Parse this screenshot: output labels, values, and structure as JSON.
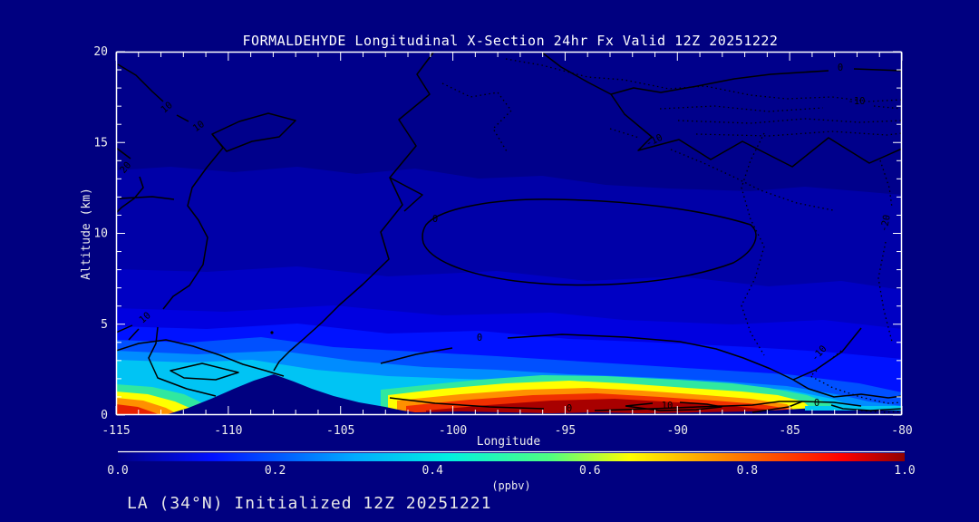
{
  "window": {
    "background": "#000080",
    "frame_color": "#ffffff"
  },
  "header": {
    "title": "FORMALDEHYDE Longitudinal X-Section 24hr  Fx Valid 12Z 20251222"
  },
  "footer": {
    "text": "LA (34°N) Initialized 12Z 20251221"
  },
  "chart_data": {
    "type": "heatmap",
    "title": "FORMALDEHYDE Longitudinal X-Section 24hr  Fx Valid 12Z 20251222",
    "xlabel": "Longitude",
    "ylabel": "Altitude (km)",
    "xlim": [
      -115,
      -80
    ],
    "ylim": [
      0,
      20
    ],
    "x_ticks": [
      -115,
      -110,
      -105,
      -100,
      -95,
      -90,
      -85,
      -80
    ],
    "x_minor_step": 1,
    "y_ticks": [
      0,
      5,
      10,
      15,
      20
    ],
    "y_minor_step": 1,
    "grid": false,
    "legend_position": "none",
    "colorbar": {
      "label": "(ppbv)",
      "tick_labels": [
        "0.0",
        "0.2",
        "0.4",
        "0.6",
        "0.8",
        "1.0"
      ],
      "range": [
        0.0,
        1.0
      ],
      "colormap": "jet",
      "stops": [
        "#000085",
        "#0010FF",
        "#00AAFF",
        "#00F0E0",
        "#50FF80",
        "#FFFF00",
        "#FF8000",
        "#FF0000",
        "#900000"
      ]
    },
    "fill_field": {
      "name": "Formaldehyde mixing ratio",
      "units": "ppbv",
      "description": "Filled contours: <0.1 ppbv (dark blue) aloft increasing toward the surface; cyan layer near 1-3 km; boundary-layer maxima >1 ppbv (dark red) near the surface between about -97 and -86 longitude and at the far-west edge near -115; dark terrain silhouette peaking near 2 km around longitude -108."
    },
    "overlay_contours": {
      "style": "black contour lines: solid = positive/zero, dotted = negative",
      "labeled_values": [
        20,
        10,
        0,
        -10,
        -20
      ],
      "labels": [
        {
          "value": "10",
          "lon": -112.7,
          "alt": 16.9
        },
        {
          "value": "10",
          "lon": -111.2,
          "alt": 15.8
        },
        {
          "value": "20",
          "lon": -114.5,
          "alt": 13.6
        },
        {
          "value": "0",
          "lon": -82.7,
          "alt": 19.0
        },
        {
          "value": "-10",
          "lon": -82.0,
          "alt": 17.2
        },
        {
          "value": "-10",
          "lon": -90.9,
          "alt": 15.0
        },
        {
          "value": "-20",
          "lon": -80.7,
          "alt": 10.5
        },
        {
          "value": "0",
          "lon": -100.8,
          "alt": 10.5
        },
        {
          "value": "0",
          "lon": -98.8,
          "alt": 4.1
        },
        {
          "value": "10",
          "lon": -113.6,
          "alt": 5.3
        },
        {
          "value": "0",
          "lon": -94.8,
          "alt": 0.3
        },
        {
          "value": "10",
          "lon": -90.5,
          "alt": 0.5
        },
        {
          "value": "0",
          "lon": -83.8,
          "alt": 0.6
        },
        {
          "value": "-10",
          "lon": -83.5,
          "alt": 3.4
        }
      ]
    }
  }
}
